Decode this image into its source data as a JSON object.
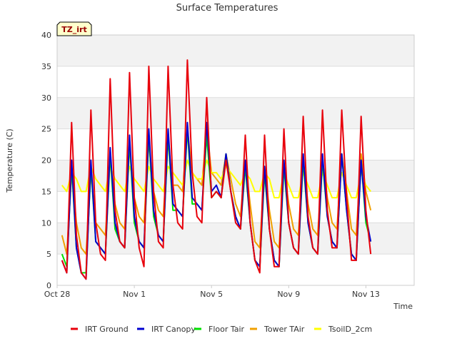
{
  "chart_data": {
    "type": "line",
    "title": "Surface Temperatures",
    "site_label": "TZ_irt",
    "xlabel": "Time",
    "ylabel": "Temperature (C)",
    "ylim": [
      0,
      40
    ],
    "yticks": [
      0,
      5,
      10,
      15,
      20,
      25,
      30,
      35,
      40
    ],
    "xlim": [
      "2023-10-28",
      "2023-11-15T12:00"
    ],
    "xticks": [
      {
        "value": "2023-10-28",
        "label": "Oct 28"
      },
      {
        "value": "2023-11-01",
        "label": "Nov 1"
      },
      {
        "value": "2023-11-05",
        "label": "Nov 5"
      },
      {
        "value": "2023-11-09",
        "label": "Nov 9"
      },
      {
        "value": "2023-11-13",
        "label": "Nov 13"
      }
    ],
    "grid": true,
    "band_shading": true,
    "legend_position": "bottom",
    "series_time_start": "2023-10-28T06:00",
    "series_time_step_hours": 6,
    "series": [
      {
        "name": "IRT Ground",
        "color": "#e8000b",
        "values": [
          4,
          2,
          26,
          8,
          2,
          1,
          28,
          10,
          5,
          4,
          33,
          12,
          7,
          6,
          34,
          14,
          6,
          3,
          35,
          15,
          7,
          6,
          35,
          16,
          10,
          9,
          36,
          18,
          11,
          10,
          30,
          14,
          15,
          14,
          20,
          15,
          10,
          9,
          24,
          10,
          4,
          2,
          24,
          9,
          3,
          3,
          25,
          10,
          6,
          5,
          27,
          11,
          6,
          5,
          28,
          12,
          6,
          6,
          28,
          14,
          4,
          4,
          27,
          12,
          5
        ]
      },
      {
        "name": "IRT Canopy",
        "color": "#0000d0",
        "values": [
          4,
          2,
          20,
          6,
          2,
          1,
          20,
          7,
          6,
          5,
          22,
          10,
          7,
          6,
          24,
          11,
          7,
          6,
          25,
          12,
          8,
          7,
          25,
          13,
          12,
          11,
          26,
          14,
          13,
          12,
          26,
          15,
          16,
          14,
          21,
          15,
          11,
          9,
          20,
          10,
          4,
          3,
          19,
          9,
          4,
          3,
          20,
          10,
          6,
          5,
          21,
          10,
          6,
          5,
          21,
          11,
          7,
          6,
          21,
          12,
          5,
          4,
          20,
          11,
          7
        ]
      },
      {
        "name": "Floor Tair",
        "color": "#00e000",
        "values": [
          5,
          3,
          19,
          6,
          2,
          2,
          19,
          7,
          6,
          5,
          21,
          9,
          7,
          6,
          23,
          10,
          7,
          6,
          24,
          11,
          8,
          7,
          24,
          12,
          12,
          11,
          25,
          13,
          13,
          12,
          24,
          14,
          15,
          14,
          21,
          15,
          11,
          9,
          19,
          10,
          4,
          3,
          18,
          9,
          4,
          3,
          19,
          10,
          6,
          5,
          20,
          10,
          6,
          5,
          20,
          11,
          7,
          6,
          21,
          12,
          5,
          4,
          20,
          10,
          7
        ]
      },
      {
        "name": "Tower TAir",
        "color": "#f0a000",
        "values": [
          8,
          5,
          18,
          10,
          6,
          5,
          18,
          10,
          9,
          8,
          20,
          13,
          10,
          9,
          22,
          14,
          11,
          10,
          23,
          15,
          12,
          11,
          23,
          16,
          16,
          15,
          25,
          18,
          17,
          16,
          25,
          18,
          17,
          16,
          21,
          17,
          13,
          11,
          20,
          13,
          7,
          6,
          19,
          12,
          7,
          6,
          19,
          13,
          9,
          8,
          20,
          13,
          9,
          8,
          20,
          14,
          10,
          9,
          21,
          15,
          9,
          8,
          21,
          15,
          12
        ]
      },
      {
        "name": "TsoilD_2cm",
        "color": "#ffff00",
        "values": [
          16,
          15,
          18,
          17,
          15,
          15,
          19,
          17,
          16,
          15,
          19,
          17,
          16,
          15,
          19,
          17,
          16,
          15,
          19,
          17,
          16,
          15,
          19,
          18,
          17,
          16,
          20,
          18,
          17,
          17,
          20,
          18,
          18,
          17,
          19,
          18,
          17,
          16,
          18,
          17,
          15,
          15,
          18,
          17,
          14,
          14,
          18,
          16,
          14,
          14,
          18,
          16,
          14,
          14,
          18,
          16,
          14,
          14,
          18,
          16,
          14,
          14,
          18,
          16,
          15
        ]
      }
    ]
  }
}
